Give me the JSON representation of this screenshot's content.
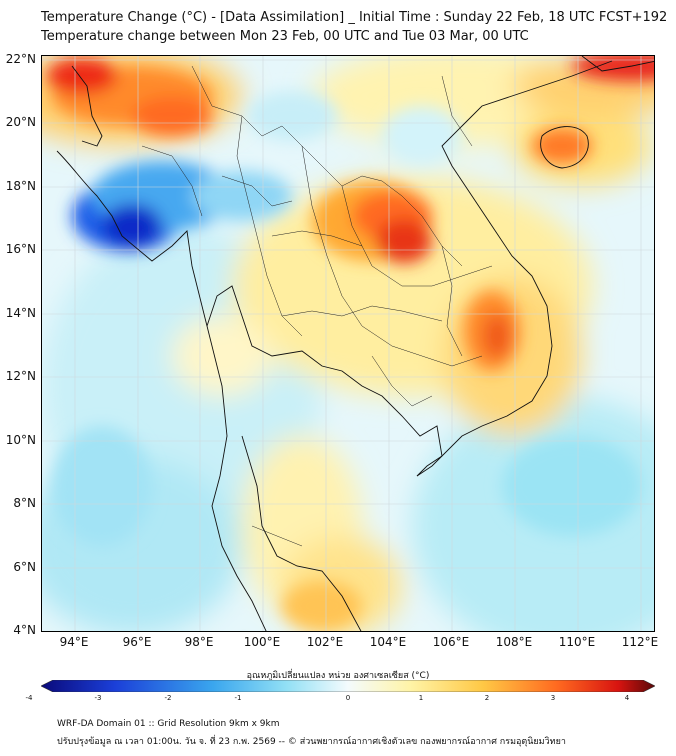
{
  "header": {
    "title_line1": "Temperature Change (°C) - [Data Assimilation] _ Initial Time : Sunday 22 Feb, 18 UTC FCST+192",
    "title_line2": "Temperature change between Mon 23 Feb, 00 UTC and Tue 03 Mar, 00 UTC"
  },
  "map": {
    "lat_labels": [
      "22°N",
      "20°N",
      "18°N",
      "16°N",
      "14°N",
      "12°N",
      "10°N",
      "8°N",
      "6°N",
      "4°N"
    ],
    "lon_labels": [
      "94°E",
      "96°E",
      "98°E",
      "100°E",
      "102°E",
      "104°E",
      "106°E",
      "108°E",
      "110°E",
      "112°E"
    ],
    "colors": {
      "ocean_base": "#e6f7fb",
      "land_base": "#fffbd0",
      "border": "#000000",
      "grid": "#cccccc"
    }
  },
  "colorbar": {
    "title": "อุณหภูมิเปลี่ยนแปลง หน่วย องศาเซลเซียส (°C)",
    "tick_labels": [
      "-4",
      "-3",
      "-2",
      "-1",
      "0",
      "1",
      "2",
      "3",
      "4"
    ],
    "range": [
      -4,
      4
    ]
  },
  "footer": {
    "line1": "WRF-DA Domain 01 :: Grid Resolution 9km x 9km",
    "line2": "ปรับปรุงข้อมูล ณ เวลา 01:00น. วัน จ. ที่ 23 ก.พ. 2569 -- © ส่วนพยากรณ์อากาศเชิงตัวเลข กองพยากรณ์อากาศ กรมอุตุนิยมวิทยา"
  }
}
